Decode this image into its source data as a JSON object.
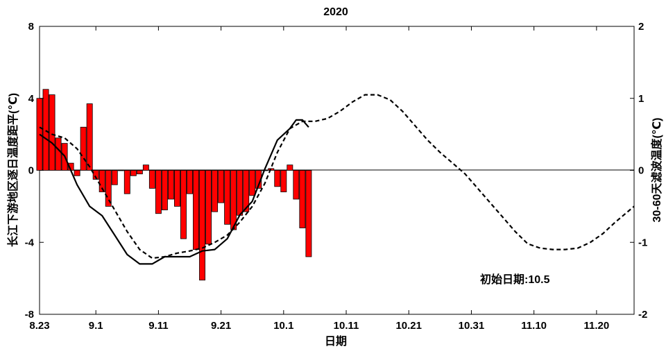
{
  "chart_data": {
    "type": "bar+line",
    "title": "2020",
    "xlabel": "日期",
    "ylabel_left": "长江下游地区逐日温度距平(℃)",
    "ylabel_right": "30-60天滤波温度(℃)",
    "annotation": "初始日期:10.5",
    "x_start_date": "2020-08-23",
    "x_tick_labels": [
      "8.23",
      "9.1",
      "9.11",
      "9.21",
      "10.1",
      "10.11",
      "10.21",
      "10.31",
      "11.10",
      "11.20"
    ],
    "x_tick_days": [
      0,
      9,
      19,
      29,
      39,
      49,
      59,
      69,
      79,
      89
    ],
    "xlim_days": [
      0,
      95
    ],
    "ylim_left": [
      -8,
      8
    ],
    "yticks_left": [
      -8,
      -4,
      0,
      4,
      8
    ],
    "ylim_right": [
      -2,
      2
    ],
    "yticks_right": [
      -2,
      -1,
      0,
      1,
      2
    ],
    "grid": false,
    "legend": "none",
    "colors": {
      "bars": "#ff0000",
      "bar_edge": "#000000",
      "lines": "#000000"
    },
    "daily_anomaly": {
      "axis": "left",
      "x_days": [
        0,
        1,
        2,
        3,
        4,
        5,
        6,
        7,
        8,
        9,
        10,
        11,
        12,
        13,
        14,
        15,
        16,
        17,
        18,
        19,
        20,
        21,
        22,
        23,
        24,
        25,
        26,
        27,
        28,
        29,
        30,
        31,
        32,
        33,
        34,
        35,
        36,
        37,
        38,
        39,
        40,
        41,
        42,
        43
      ],
      "values": [
        4.0,
        4.5,
        4.2,
        1.8,
        1.5,
        0.4,
        -0.3,
        2.4,
        3.7,
        -0.5,
        -1.2,
        -2.0,
        -0.8,
        0.0,
        -1.3,
        -0.3,
        -0.2,
        0.3,
        -1.0,
        -2.4,
        -2.2,
        -1.6,
        -2.0,
        -3.8,
        -1.3,
        -4.4,
        -6.1,
        -4.1,
        -2.3,
        -1.8,
        -3.0,
        -3.3,
        -2.5,
        -2.3,
        -1.4,
        -1.0,
        0.0,
        0.1,
        -0.9,
        -1.2,
        0.3,
        -1.6,
        -3.2,
        -4.8
      ]
    },
    "series": [
      {
        "style": "solid",
        "axis": "right",
        "x_days": [
          0,
          2,
          4,
          6,
          8,
          10,
          12,
          14,
          16,
          18,
          20,
          22,
          24,
          26,
          28,
          30,
          32,
          34,
          36,
          38,
          40,
          41,
          42,
          43
        ],
        "values": [
          0.5,
          0.38,
          0.2,
          -0.2,
          -0.5,
          -0.63,
          -0.9,
          -1.17,
          -1.3,
          -1.3,
          -1.2,
          -1.2,
          -1.2,
          -1.12,
          -1.1,
          -0.95,
          -0.62,
          -0.43,
          0.02,
          0.42,
          0.58,
          0.7,
          0.7,
          0.6
        ]
      },
      {
        "style": "dashed",
        "axis": "right",
        "x_days": [
          0,
          2,
          4,
          6,
          8,
          10,
          12,
          14,
          16,
          18,
          20,
          22,
          24,
          26,
          28,
          30,
          32,
          34,
          36,
          38,
          40,
          42,
          44,
          46,
          48,
          50,
          52,
          54,
          56,
          58,
          60,
          62,
          64,
          66,
          68,
          70,
          72,
          74,
          76,
          78,
          80,
          82,
          84,
          86,
          88,
          90,
          92,
          95
        ],
        "values": [
          0.6,
          0.5,
          0.45,
          0.3,
          0.05,
          -0.25,
          -0.55,
          -0.85,
          -1.1,
          -1.22,
          -1.2,
          -1.15,
          -1.12,
          -1.08,
          -1.0,
          -0.9,
          -0.72,
          -0.5,
          -0.18,
          0.25,
          0.58,
          0.68,
          0.68,
          0.72,
          0.82,
          0.95,
          1.05,
          1.05,
          0.98,
          0.82,
          0.62,
          0.42,
          0.25,
          0.1,
          -0.05,
          -0.25,
          -0.45,
          -0.65,
          -0.85,
          -1.02,
          -1.08,
          -1.1,
          -1.1,
          -1.08,
          -1.0,
          -0.88,
          -0.72,
          -0.5
        ]
      }
    ]
  }
}
